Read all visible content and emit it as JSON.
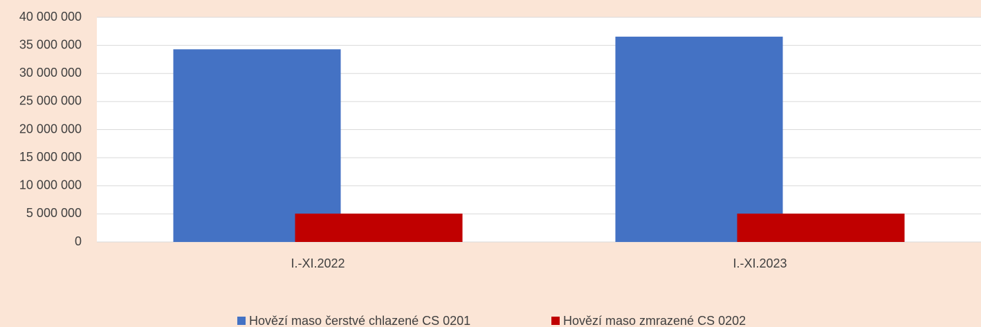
{
  "chart_data": {
    "type": "bar",
    "categories": [
      "I.-XI.2022",
      "I.-XI.2023"
    ],
    "series": [
      {
        "name": "Hovězí maso čerstvé chlazené CS 0201",
        "color": "#4472c4",
        "values": [
          34300000,
          36550000
        ]
      },
      {
        "name": "Hovězí maso zmrazené CS 0202",
        "color": "#c00000",
        "values": [
          5050000,
          5050000
        ]
      }
    ],
    "ylim": [
      0,
      40000000
    ],
    "yticks": [
      0,
      {
        "value": 5000000,
        "label": "5 000 000"
      },
      {
        "value": 10000000,
        "label": "10 000 000"
      },
      {
        "value": 15000000,
        "label": "15 000 000"
      },
      {
        "value": 20000000,
        "label": "20 000 000"
      },
      {
        "value": 25000000,
        "label": "25 000 000"
      },
      {
        "value": 30000000,
        "label": "30 000 000"
      },
      {
        "value": 35000000,
        "label": "35 000 000"
      },
      {
        "value": 40000000,
        "label": "40 000 000"
      }
    ],
    "grid": true,
    "legend": "bottom"
  }
}
